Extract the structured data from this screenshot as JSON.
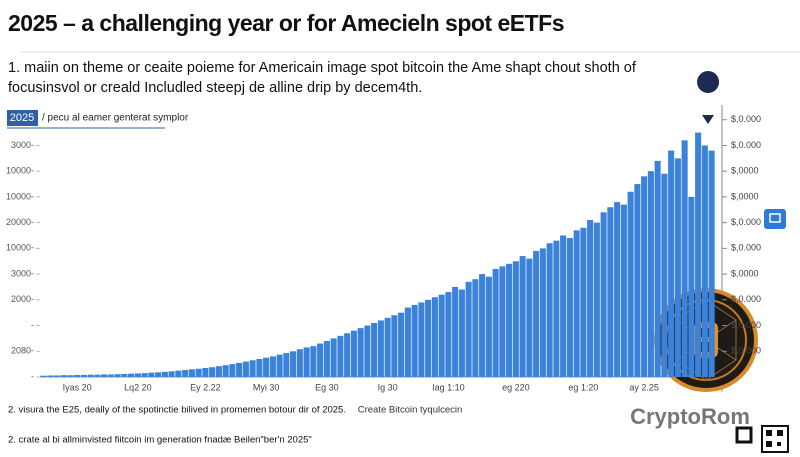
{
  "chart_data": {
    "type": "bar",
    "title": "2025 – a challenging year or for Amecieln spot eETFs",
    "subtitle": "1. maiin on theme or ceaite poieme for Americain image spot bitcoin the Ame shapt chout shoth of focusinsvol or creald Includled steepj de alline drip by decem4th.",
    "legend_badge": "2025",
    "categories": [
      null,
      null,
      null,
      null,
      null,
      "Iyas 20",
      null,
      null,
      null,
      null,
      null,
      null,
      null,
      null,
      "Lq2 20",
      null,
      null,
      null,
      null,
      null,
      null,
      null,
      null,
      null,
      "Ey 2.22",
      null,
      null,
      null,
      null,
      null,
      null,
      null,
      null,
      "Myi 30",
      null,
      null,
      null,
      null,
      null,
      null,
      null,
      null,
      "Eg 30",
      null,
      null,
      null,
      null,
      null,
      null,
      null,
      null,
      "Ig 30",
      null,
      null,
      null,
      null,
      null,
      null,
      null,
      null,
      "Iag 1:10",
      null,
      null,
      null,
      null,
      null,
      null,
      null,
      null,
      null,
      "eg 220",
      null,
      null,
      null,
      null,
      null,
      null,
      null,
      null,
      null,
      "eg 1:20",
      null,
      null,
      null,
      null,
      null,
      null,
      null,
      null,
      "ay 2.25",
      null,
      null,
      null,
      null,
      null,
      null,
      null,
      null,
      null,
      null
    ],
    "series": [
      {
        "name": "/ pecu al eamer genterat symplor",
        "color": "#3b82db",
        "values": [
          0.5,
          0.6,
          0.6,
          0.7,
          0.7,
          0.8,
          0.8,
          0.9,
          0.9,
          1,
          1,
          1.1,
          1.2,
          1.3,
          1.4,
          1.5,
          1.7,
          1.8,
          2,
          2.2,
          2.5,
          2.7,
          3,
          3.2,
          3.5,
          3.8,
          4.2,
          4.6,
          5,
          5.5,
          6,
          6.5,
          7,
          7.5,
          8,
          8.7,
          9.3,
          10,
          10.8,
          11.5,
          12,
          13,
          14,
          15,
          16,
          17,
          18,
          19,
          20,
          21,
          22,
          23,
          24,
          25,
          27,
          28,
          29,
          30,
          31,
          32,
          33,
          35,
          34,
          37,
          38,
          40,
          39,
          42,
          43,
          44,
          45,
          47,
          46,
          49,
          50,
          52,
          53,
          55,
          54,
          57,
          58,
          61,
          60,
          64,
          66,
          68,
          67,
          72,
          75,
          78,
          80,
          84,
          79,
          88,
          85,
          92,
          70,
          95,
          90,
          88
        ]
      }
    ],
    "ylim": [
      0,
      110
    ],
    "yticks": [
      {
        "value": 0,
        "label": "-"
      },
      {
        "value": 10,
        "label": "2080-"
      },
      {
        "value": 20,
        "label": "-"
      },
      {
        "value": 30,
        "label": "2000-"
      },
      {
        "value": 40,
        "label": "3000-"
      },
      {
        "value": 50,
        "label": "10000-"
      },
      {
        "value": 60,
        "label": "20000-"
      },
      {
        "value": 70,
        "label": "10000-"
      },
      {
        "value": 80,
        "label": "10000-"
      },
      {
        "value": 90,
        "label": "3000-"
      }
    ],
    "y2lim": [
      0,
      110
    ],
    "y2ticks": [
      {
        "value": 10,
        "label": "$,0.000"
      },
      {
        "value": 20,
        "label": "$,0.000"
      },
      {
        "value": 30,
        "label": "$,0.000"
      },
      {
        "value": 40,
        "label": "$,0000"
      },
      {
        "value": 50,
        "label": "$,0.000"
      },
      {
        "value": 60,
        "label": "$,0.000"
      },
      {
        "value": 70,
        "label": "$,0000"
      },
      {
        "value": 80,
        "label": "$,0000"
      },
      {
        "value": 90,
        "label": "$,0.000"
      },
      {
        "value": 100,
        "label": "$,0.000"
      }
    ],
    "notes": [
      "2. visura the E25, deally of the spotinctie bilived in promemen botour dir of 2025.",
      "2. crate al bi allminvisted fiitcoin im generation fnadæ Beilen\"ber'n 2025\""
    ],
    "source": "Create Bitcoin tyqulcecin",
    "brand": "CryptoRom"
  }
}
